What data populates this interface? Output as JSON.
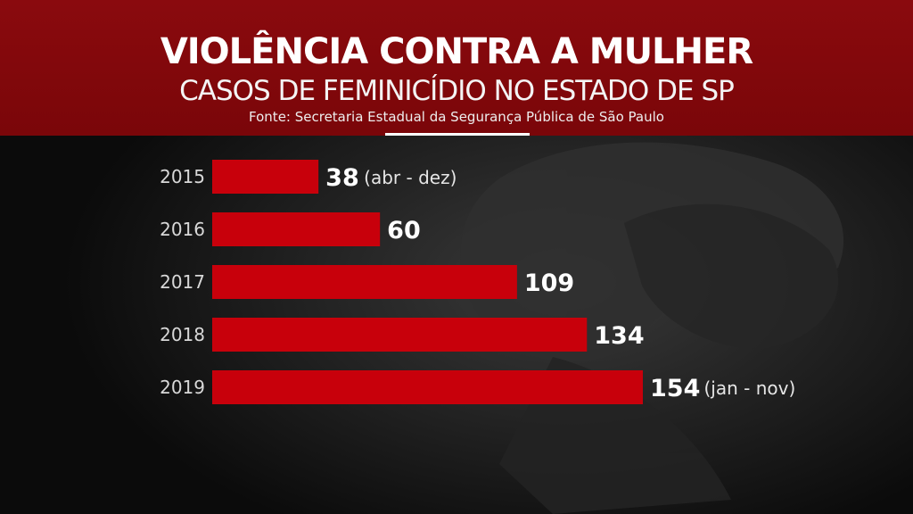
{
  "header": {
    "title": "VIOLÊNCIA CONTRA A MULHER",
    "subtitle": "CASOS DE FEMINICÍDIO NO ESTADO DE SP",
    "source": "Fonte: Secretaria Estadual da Segurança Pública de São Paulo"
  },
  "colors": {
    "header_bg": "#7f080b",
    "bar": "#c8000b",
    "background": "#0b0b0b",
    "text": "#ffffff"
  },
  "chart_data": {
    "type": "bar",
    "orientation": "horizontal",
    "categories": [
      "2015",
      "2016",
      "2017",
      "2018",
      "2019"
    ],
    "values": [
      38,
      60,
      109,
      134,
      154
    ],
    "value_labels": [
      "38",
      "60",
      "109",
      "134",
      "154"
    ],
    "notes": [
      "(abr - dez)",
      "",
      "",
      "",
      "(jan - nov)"
    ],
    "xlim": [
      0,
      154
    ],
    "grid": false,
    "legend": "none"
  }
}
